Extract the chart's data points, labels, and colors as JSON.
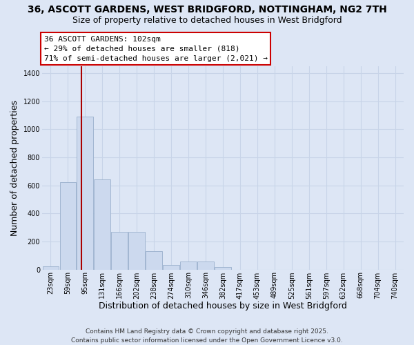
{
  "title_line1": "36, ASCOTT GARDENS, WEST BRIDGFORD, NOTTINGHAM, NG2 7TH",
  "title_line2": "Size of property relative to detached houses in West Bridgford",
  "xlabel": "Distribution of detached houses by size in West Bridgford",
  "ylabel": "Number of detached properties",
  "categories": [
    "23sqm",
    "59sqm",
    "95sqm",
    "131sqm",
    "166sqm",
    "202sqm",
    "238sqm",
    "274sqm",
    "310sqm",
    "346sqm",
    "382sqm",
    "417sqm",
    "453sqm",
    "489sqm",
    "525sqm",
    "561sqm",
    "597sqm",
    "632sqm",
    "668sqm",
    "704sqm",
    "740sqm"
  ],
  "values": [
    22,
    620,
    1090,
    640,
    270,
    270,
    130,
    30,
    55,
    55,
    18,
    0,
    0,
    0,
    0,
    0,
    0,
    0,
    0,
    0,
    0
  ],
  "bar_color": "#ccd9ee",
  "bar_edge_color": "#9ab0cc",
  "vline_x_index": 2,
  "vline_color": "#aa0000",
  "annotation_line1": "36 ASCOTT GARDENS: 102sqm",
  "annotation_line2": "← 29% of detached houses are smaller (818)",
  "annotation_line3": "71% of semi-detached houses are larger (2,021) →",
  "annotation_box_facecolor": "#ffffff",
  "annotation_box_edgecolor": "#cc0000",
  "ylim_max": 1450,
  "yticks": [
    0,
    200,
    400,
    600,
    800,
    1000,
    1200,
    1400
  ],
  "grid_color": "#c8d4e8",
  "background_color": "#dde6f5",
  "footer_line1": "Contains HM Land Registry data © Crown copyright and database right 2025.",
  "footer_line2": "Contains public sector information licensed under the Open Government Licence v3.0.",
  "title_fontsize": 10,
  "subtitle_fontsize": 9,
  "axis_label_fontsize": 9,
  "tick_fontsize": 7,
  "annotation_fontsize": 8,
  "footer_fontsize": 6.5
}
